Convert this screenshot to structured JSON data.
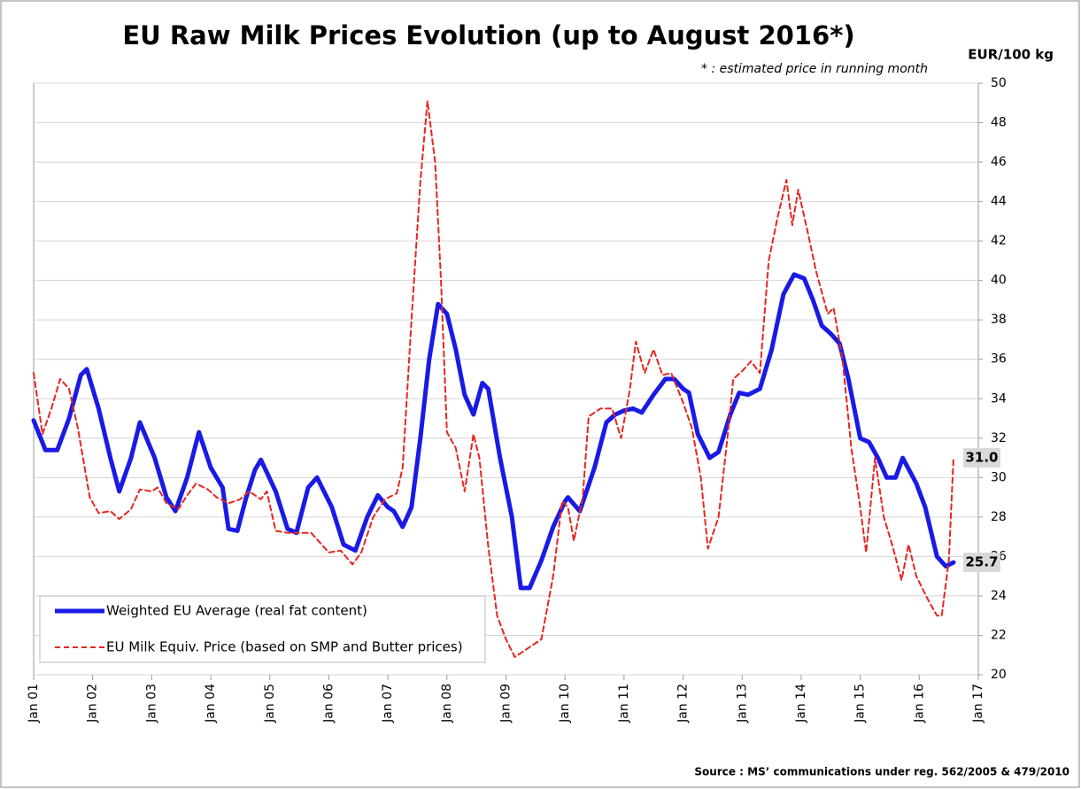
{
  "chart_data": {
    "type": "line",
    "title": "EU Raw Milk Prices Evolution (up to  August 2016*)",
    "note": "* : estimated price in running month",
    "y_axis_label": "EUR/100 kg",
    "source": "Source : MS’ communications under reg. 562/2005 & 479/2010",
    "ylim": [
      20,
      50
    ],
    "yticks": [
      20,
      22,
      24,
      26,
      28,
      30,
      32,
      34,
      36,
      38,
      40,
      42,
      44,
      46,
      48,
      50
    ],
    "xlim": [
      2001,
      2017
    ],
    "xticks": [
      {
        "value": 2001,
        "label": "Jan 01"
      },
      {
        "value": 2002,
        "label": "Jan 02"
      },
      {
        "value": 2003,
        "label": "Jan 03"
      },
      {
        "value": 2004,
        "label": "Jan 04"
      },
      {
        "value": 2005,
        "label": "Jan 05"
      },
      {
        "value": 2006,
        "label": "Jan 06"
      },
      {
        "value": 2007,
        "label": "Jan 07"
      },
      {
        "value": 2008,
        "label": "Jan 08"
      },
      {
        "value": 2009,
        "label": "Jan 09"
      },
      {
        "value": 2010,
        "label": "Jan 10"
      },
      {
        "value": 2011,
        "label": "Jan 11"
      },
      {
        "value": 2012,
        "label": "Jan 12"
      },
      {
        "value": 2013,
        "label": "Jan 13"
      },
      {
        "value": 2014,
        "label": "Jan 14"
      },
      {
        "value": 2015,
        "label": "Jan 15"
      },
      {
        "value": 2016,
        "label": "Jan 16"
      },
      {
        "value": 2017,
        "label": "Jan 17"
      }
    ],
    "grid": true,
    "legend_position": "lower left",
    "series": [
      {
        "name": "Weighted EU Average (real fat content)",
        "color": "#1a1ae6",
        "dash": false,
        "end_label": "25.7",
        "x": [
          2001.0,
          2001.2,
          2001.4,
          2001.6,
          2001.8,
          2001.9,
          2002.1,
          2002.3,
          2002.45,
          2002.65,
          2002.8,
          2003.05,
          2003.25,
          2003.4,
          2003.6,
          2003.8,
          2004.0,
          2004.2,
          2004.3,
          2004.45,
          2004.6,
          2004.75,
          2004.85,
          2005.1,
          2005.3,
          2005.45,
          2005.65,
          2005.8,
          2006.05,
          2006.25,
          2006.45,
          2006.65,
          2006.83,
          2007.0,
          2007.1,
          2007.25,
          2007.4,
          2007.55,
          2007.7,
          2007.85,
          2008.0,
          2008.15,
          2008.3,
          2008.45,
          2008.6,
          2008.7,
          2008.9,
          2009.1,
          2009.25,
          2009.4,
          2009.6,
          2009.8,
          2010.0,
          2010.05,
          2010.25,
          2010.5,
          2010.7,
          2010.85,
          2011.0,
          2011.15,
          2011.3,
          2011.5,
          2011.7,
          2011.85,
          2012.0,
          2012.1,
          2012.25,
          2012.45,
          2012.6,
          2012.8,
          2012.95,
          2013.1,
          2013.3,
          2013.5,
          2013.7,
          2013.88,
          2014.05,
          2014.2,
          2014.35,
          2014.5,
          2014.65,
          2014.8,
          2015.0,
          2015.15,
          2015.3,
          2015.45,
          2015.6,
          2015.72,
          2015.95,
          2016.1,
          2016.3,
          2016.45,
          2016.58
        ],
        "values": [
          32.9,
          31.4,
          31.4,
          33,
          35.2,
          35.5,
          33.5,
          31,
          29.3,
          31,
          32.8,
          31,
          29,
          28.3,
          30,
          32.3,
          30.5,
          29.5,
          27.4,
          27.3,
          29,
          30.4,
          30.9,
          29.3,
          27.4,
          27.2,
          29.5,
          30,
          28.5,
          26.6,
          26.3,
          28,
          29.1,
          28.5,
          28.3,
          27.5,
          28.5,
          32,
          36,
          38.8,
          38.3,
          36.5,
          34.2,
          33.2,
          34.8,
          34.5,
          31,
          28,
          24.4,
          24.4,
          25.8,
          27.5,
          28.8,
          29,
          28.3,
          30.5,
          32.8,
          33.2,
          33.4,
          33.5,
          33.3,
          34.2,
          35,
          35,
          34.5,
          34.3,
          32.2,
          31,
          31.3,
          33.2,
          34.3,
          34.2,
          34.5,
          36.5,
          39.3,
          40.3,
          40.1,
          39,
          37.7,
          37.3,
          36.8,
          35,
          32,
          31.8,
          31,
          30,
          30,
          31,
          29.7,
          28.5,
          26,
          25.5,
          25.7
        ]
      },
      {
        "name": "EU Milk Equiv. Price (based on SMP and Butter prices)",
        "color": "#e8251e",
        "dash": true,
        "end_label": "31.0",
        "x": [
          2001.0,
          2001.15,
          2001.3,
          2001.45,
          2001.6,
          2001.75,
          2001.95,
          2002.1,
          2002.3,
          2002.45,
          2002.65,
          2002.8,
          2003.0,
          2003.1,
          2003.25,
          2003.45,
          2003.6,
          2003.75,
          2003.95,
          2004.1,
          2004.3,
          2004.5,
          2004.65,
          2004.85,
          2004.95,
          2005.1,
          2005.3,
          2005.5,
          2005.7,
          2005.85,
          2006.0,
          2006.2,
          2006.4,
          2006.55,
          2006.75,
          2006.95,
          2007.15,
          2007.25,
          2007.4,
          2007.55,
          2007.67,
          2007.8,
          2007.9,
          2008.0,
          2008.15,
          2008.3,
          2008.45,
          2008.55,
          2008.7,
          2008.85,
          2009.0,
          2009.15,
          2009.35,
          2009.6,
          2009.8,
          2009.95,
          2010.05,
          2010.15,
          2010.3,
          2010.4,
          2010.6,
          2010.8,
          2010.95,
          2011.1,
          2011.2,
          2011.35,
          2011.5,
          2011.65,
          2011.8,
          2012.0,
          2012.15,
          2012.3,
          2012.42,
          2012.6,
          2012.75,
          2012.85,
          2013.0,
          2013.15,
          2013.3,
          2013.45,
          2013.6,
          2013.75,
          2013.85,
          2013.95,
          2014.1,
          2014.25,
          2014.45,
          2014.55,
          2014.7,
          2014.85,
          2015.0,
          2015.1,
          2015.25,
          2015.4,
          2015.55,
          2015.7,
          2015.82,
          2015.95,
          2016.15,
          2016.3,
          2016.38,
          2016.5,
          2016.58
        ],
        "values": [
          35.3,
          32.2,
          33.5,
          35,
          34.5,
          32.5,
          29,
          28.2,
          28.3,
          27.9,
          28.4,
          29.4,
          29.3,
          29.5,
          28.7,
          28.4,
          29.1,
          29.7,
          29.4,
          29,
          28.7,
          28.9,
          29.3,
          28.9,
          29.3,
          27.3,
          27.2,
          27.2,
          27.2,
          26.7,
          26.2,
          26.3,
          25.6,
          26.2,
          28,
          28.9,
          29.2,
          30.5,
          38,
          45,
          49.1,
          46,
          40,
          32.3,
          31.5,
          29.3,
          32.2,
          31,
          26.5,
          23,
          21.8,
          20.9,
          21.3,
          21.8,
          25,
          28.8,
          28.5,
          26.8,
          29,
          33.1,
          33.5,
          33.5,
          32,
          34.5,
          36.9,
          35.3,
          36.5,
          35.2,
          35.3,
          33.8,
          32.5,
          30,
          26.4,
          28,
          32,
          35,
          35.4,
          35.9,
          35.3,
          41,
          43.2,
          45.1,
          42.8,
          44.6,
          42.6,
          40.5,
          38.3,
          38.6,
          36,
          31.5,
          28.5,
          26.2,
          31,
          28,
          26.5,
          24.8,
          26.6,
          25,
          23.8,
          23,
          23,
          25.8,
          31
        ]
      }
    ]
  }
}
